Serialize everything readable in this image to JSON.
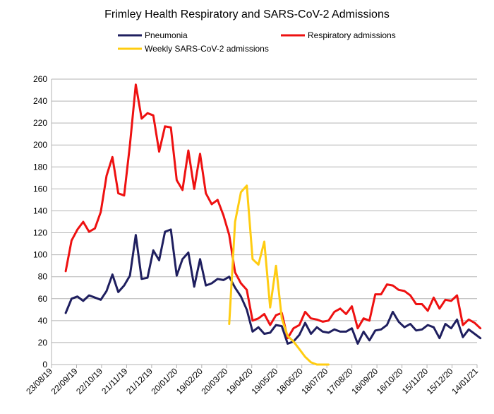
{
  "chart_data": {
    "type": "line",
    "title": "Frimley Health Respiratory and SARS-CoV-2 Admissions",
    "xlabel": "",
    "ylabel": "",
    "ylim": [
      0,
      260
    ],
    "y_ticks": [
      0,
      20,
      40,
      60,
      80,
      100,
      120,
      140,
      160,
      180,
      200,
      220,
      240,
      260
    ],
    "x_ticks": [
      "23/08/19",
      "22/09/19",
      "22/10/19",
      "21/11/19",
      "21/12/19",
      "20/01/20",
      "19/02/20",
      "20/03/20",
      "19/04/20",
      "19/05/20",
      "18/06/20",
      "18/07/20",
      "17/08/20",
      "16/09/20",
      "16/10/20",
      "15/11/20",
      "15/12/20",
      "14/01/21"
    ],
    "grid": "horizontal",
    "legend": "top",
    "series": [
      {
        "name": "Pneumonia",
        "color": "#1f1f5f",
        "points": [
          [
            "2019-09-09",
            47
          ],
          [
            "2019-09-16",
            60
          ],
          [
            "2019-09-23",
            62
          ],
          [
            "2019-09-30",
            58
          ],
          [
            "2019-10-07",
            63
          ],
          [
            "2019-10-14",
            61
          ],
          [
            "2019-10-21",
            59
          ],
          [
            "2019-10-28",
            67
          ],
          [
            "2019-11-04",
            82
          ],
          [
            "2019-11-11",
            66
          ],
          [
            "2019-11-18",
            72
          ],
          [
            "2019-11-25",
            81
          ],
          [
            "2019-12-02",
            118
          ],
          [
            "2019-12-09",
            78
          ],
          [
            "2019-12-16",
            79
          ],
          [
            "2019-12-23",
            104
          ],
          [
            "2019-12-30",
            95
          ],
          [
            "2020-01-06",
            121
          ],
          [
            "2020-01-13",
            123
          ],
          [
            "2020-01-20",
            81
          ],
          [
            "2020-01-27",
            96
          ],
          [
            "2020-02-03",
            102
          ],
          [
            "2020-02-10",
            71
          ],
          [
            "2020-02-17",
            96
          ],
          [
            "2020-02-24",
            72
          ],
          [
            "2020-03-02",
            74
          ],
          [
            "2020-03-09",
            78
          ],
          [
            "2020-03-16",
            77
          ],
          [
            "2020-03-23",
            80
          ],
          [
            "2020-03-30",
            70
          ],
          [
            "2020-04-06",
            62
          ],
          [
            "2020-04-13",
            50
          ],
          [
            "2020-04-20",
            30
          ],
          [
            "2020-04-27",
            34
          ],
          [
            "2020-05-04",
            28
          ],
          [
            "2020-05-11",
            29
          ],
          [
            "2020-05-18",
            36
          ],
          [
            "2020-05-25",
            35
          ],
          [
            "2020-06-01",
            19
          ],
          [
            "2020-06-08",
            21
          ],
          [
            "2020-06-15",
            27
          ],
          [
            "2020-06-22",
            38
          ],
          [
            "2020-06-29",
            28
          ],
          [
            "2020-07-06",
            34
          ],
          [
            "2020-07-13",
            30
          ],
          [
            "2020-07-20",
            29
          ],
          [
            "2020-07-27",
            32
          ],
          [
            "2020-08-03",
            30
          ],
          [
            "2020-08-10",
            30
          ],
          [
            "2020-08-17",
            33
          ],
          [
            "2020-08-24",
            19
          ],
          [
            "2020-08-31",
            30
          ],
          [
            "2020-09-07",
            22
          ],
          [
            "2020-09-14",
            31
          ],
          [
            "2020-09-21",
            32
          ],
          [
            "2020-09-28",
            36
          ],
          [
            "2020-10-05",
            48
          ],
          [
            "2020-10-12",
            39
          ],
          [
            "2020-10-19",
            34
          ],
          [
            "2020-10-26",
            37
          ],
          [
            "2020-11-02",
            31
          ],
          [
            "2020-11-09",
            32
          ],
          [
            "2020-11-16",
            36
          ],
          [
            "2020-11-23",
            34
          ],
          [
            "2020-11-30",
            24
          ],
          [
            "2020-12-07",
            37
          ],
          [
            "2020-12-14",
            33
          ],
          [
            "2020-12-21",
            41
          ],
          [
            "2020-12-28",
            25
          ],
          [
            "2021-01-04",
            32
          ],
          [
            "2021-01-11",
            28
          ],
          [
            "2021-01-18",
            24
          ]
        ]
      },
      {
        "name": "Respiratory admissions",
        "color": "#ee1111",
        "points": [
          [
            "2019-09-09",
            85
          ],
          [
            "2019-09-16",
            113
          ],
          [
            "2019-09-23",
            123
          ],
          [
            "2019-09-30",
            130
          ],
          [
            "2019-10-07",
            121
          ],
          [
            "2019-10-14",
            124
          ],
          [
            "2019-10-21",
            139
          ],
          [
            "2019-10-28",
            172
          ],
          [
            "2019-11-04",
            189
          ],
          [
            "2019-11-11",
            156
          ],
          [
            "2019-11-18",
            154
          ],
          [
            "2019-11-25",
            200
          ],
          [
            "2019-12-02",
            255
          ],
          [
            "2019-12-09",
            224
          ],
          [
            "2019-12-16",
            229
          ],
          [
            "2019-12-23",
            227
          ],
          [
            "2019-12-30",
            194
          ],
          [
            "2020-01-06",
            217
          ],
          [
            "2020-01-13",
            216
          ],
          [
            "2020-01-20",
            168
          ],
          [
            "2020-01-27",
            159
          ],
          [
            "2020-02-03",
            195
          ],
          [
            "2020-02-10",
            160
          ],
          [
            "2020-02-17",
            192
          ],
          [
            "2020-02-24",
            156
          ],
          [
            "2020-03-02",
            146
          ],
          [
            "2020-03-09",
            150
          ],
          [
            "2020-03-16",
            136
          ],
          [
            "2020-03-23",
            118
          ],
          [
            "2020-03-30",
            84
          ],
          [
            "2020-04-06",
            74
          ],
          [
            "2020-04-13",
            68
          ],
          [
            "2020-04-20",
            40
          ],
          [
            "2020-04-27",
            42
          ],
          [
            "2020-05-04",
            46
          ],
          [
            "2020-05-11",
            36
          ],
          [
            "2020-05-18",
            45
          ],
          [
            "2020-05-25",
            47
          ],
          [
            "2020-06-01",
            24
          ],
          [
            "2020-06-08",
            33
          ],
          [
            "2020-06-15",
            36
          ],
          [
            "2020-06-22",
            48
          ],
          [
            "2020-06-29",
            42
          ],
          [
            "2020-07-06",
            41
          ],
          [
            "2020-07-13",
            39
          ],
          [
            "2020-07-20",
            40
          ],
          [
            "2020-07-27",
            48
          ],
          [
            "2020-08-03",
            51
          ],
          [
            "2020-08-10",
            46
          ],
          [
            "2020-08-17",
            53
          ],
          [
            "2020-08-24",
            33
          ],
          [
            "2020-08-31",
            42
          ],
          [
            "2020-09-07",
            40
          ],
          [
            "2020-09-14",
            64
          ],
          [
            "2020-09-21",
            64
          ],
          [
            "2020-09-28",
            73
          ],
          [
            "2020-10-05",
            72
          ],
          [
            "2020-10-12",
            68
          ],
          [
            "2020-10-19",
            67
          ],
          [
            "2020-10-26",
            63
          ],
          [
            "2020-11-02",
            55
          ],
          [
            "2020-11-09",
            55
          ],
          [
            "2020-11-16",
            49
          ],
          [
            "2020-11-23",
            61
          ],
          [
            "2020-11-30",
            51
          ],
          [
            "2020-12-07",
            59
          ],
          [
            "2020-12-14",
            58
          ],
          [
            "2020-12-21",
            63
          ],
          [
            "2020-12-28",
            36
          ],
          [
            "2021-01-04",
            41
          ],
          [
            "2021-01-11",
            38
          ],
          [
            "2021-01-18",
            33
          ]
        ]
      },
      {
        "name": "Weekly SARS-CoV-2 admissions",
        "color": "#ffcc11",
        "points": [
          [
            "2020-03-23",
            37
          ],
          [
            "2020-03-30",
            130
          ],
          [
            "2020-04-06",
            157
          ],
          [
            "2020-04-13",
            163
          ],
          [
            "2020-04-20",
            96
          ],
          [
            "2020-04-27",
            91
          ],
          [
            "2020-05-04",
            112
          ],
          [
            "2020-05-11",
            52
          ],
          [
            "2020-05-18",
            90
          ],
          [
            "2020-05-25",
            42
          ],
          [
            "2020-06-01",
            26
          ],
          [
            "2020-06-08",
            21
          ],
          [
            "2020-06-15",
            14
          ],
          [
            "2020-06-22",
            7
          ],
          [
            "2020-06-29",
            2
          ],
          [
            "2020-07-06",
            0
          ],
          [
            "2020-07-13",
            0
          ],
          [
            "2020-07-20",
            0
          ]
        ]
      }
    ]
  }
}
